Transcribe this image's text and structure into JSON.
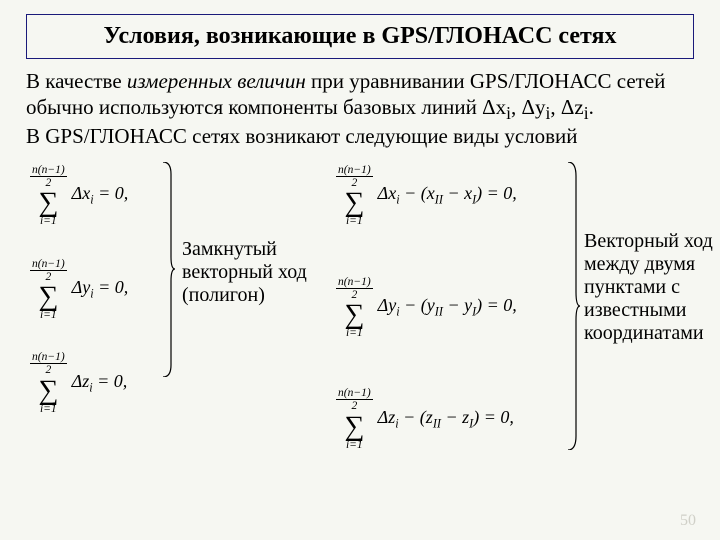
{
  "title": "Условия, возникающие в GPS/ГЛОНАСС сетях",
  "intro_html": "В качестве <em>измеренных величин</em> при уравнивании GPS/ГЛОНАСС сетей обычно используются компоненты базовых линий Δx<sub>i</sub>, Δy<sub>i</sub>, Δz<sub>i</sub>.<br>В GPS/ГЛОНАСС сетях возникают следующие виды условий",
  "sum_upper_num": "n(n−1)",
  "sum_upper_den": "2",
  "sum_lower": "i=1",
  "left_eqs": [
    "Δx<sub>i</sub> = 0,",
    "Δy<sub>i</sub> = 0,",
    "Δz<sub>i</sub> = 0,"
  ],
  "right_eqs": [
    "Δx<sub>i</sub> − (x<sub>II</sub> − x<sub>I</sub>) = 0,",
    "Δy<sub>i</sub> − (y<sub>II</sub> − y<sub>I</sub>) = 0,",
    "Δz<sub>i</sub> − (z<sub>II</sub> − z<sub>I</sub>) = 0,"
  ],
  "caption_left": "Замкнутый\nвекторный ход\n(полигон)",
  "caption_right": "Векторный ход\nмежду двумя\nпунктами с\nизвестными\nкоординатами",
  "page_number": "50",
  "colors": {
    "title_border": "#1a1a7a",
    "bg": "#f6f7f2",
    "pagenum": "#d0d0c8"
  },
  "typography": {
    "title_fontsize": 24,
    "body_fontsize": 21,
    "caption_fontsize": 20
  }
}
